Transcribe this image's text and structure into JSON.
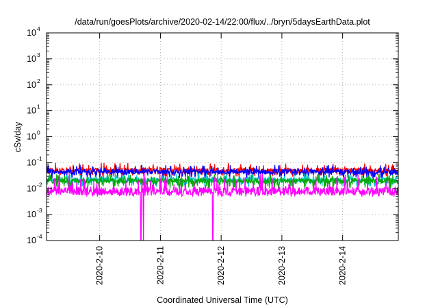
{
  "chart_data": {
    "type": "line",
    "title": "/data/run/goesPlots/archive/2020-02-14/22:00/flux/../bryn/5daysEarthData.plot",
    "xlabel": "Coordinated Universal Time (UTC)",
    "ylabel": "cSv/day",
    "y_scale": "log",
    "ylim": [
      0.0001,
      10000
    ],
    "y_ticks": [
      {
        "value": 0.0001,
        "base": "10",
        "exp": "-4"
      },
      {
        "value": 0.001,
        "base": "10",
        "exp": "-3"
      },
      {
        "value": 0.01,
        "base": "10",
        "exp": "-2"
      },
      {
        "value": 0.1,
        "base": "10",
        "exp": "-1"
      },
      {
        "value": 1,
        "base": "10",
        "exp": "0"
      },
      {
        "value": 10,
        "base": "10",
        "exp": "1"
      },
      {
        "value": 100,
        "base": "10",
        "exp": "2"
      },
      {
        "value": 1000,
        "base": "10",
        "exp": "3"
      },
      {
        "value": 10000,
        "base": "10",
        "exp": "4"
      }
    ],
    "xlim": [
      "2020-02-09 03:00",
      "2020-02-14 22:00"
    ],
    "x_ticks": [
      {
        "value": "2020-02-10 00:00",
        "label": "2020-2-10"
      },
      {
        "value": "2020-02-11 00:00",
        "label": "2020-2-11"
      },
      {
        "value": "2020-02-12 00:00",
        "label": "2020-2-12"
      },
      {
        "value": "2020-02-13 00:00",
        "label": "2020-2-13"
      },
      {
        "value": "2020-02-14 00:00",
        "label": "2020-2-14"
      }
    ],
    "grid": true,
    "legend": "none",
    "series": [
      {
        "color": "#ff0000",
        "typical": 0.052,
        "spread_low": 0.03,
        "spread_high": 0.095
      },
      {
        "color": "#0000ff",
        "typical": 0.045,
        "spread_low": 0.025,
        "spread_high": 0.08
      },
      {
        "color": "#00c8c8",
        "typical": 0.022,
        "spread_low": 0.012,
        "spread_high": 0.04
      },
      {
        "color": "#00aa00",
        "typical": 0.02,
        "spread_low": 0.01,
        "spread_high": 0.035
      },
      {
        "color": "#ff00ff",
        "typical": 0.008,
        "spread_low": 0.005,
        "spread_high": 0.04,
        "dropouts": [
          {
            "start": "2020-02-10 16:10",
            "end": "2020-02-10 16:25",
            "value": 0.0001
          },
          {
            "start": "2020-02-10 17:10",
            "end": "2020-02-10 17:25",
            "value": 0.0001
          },
          {
            "start": "2020-02-11 20:30",
            "end": "2020-02-11 20:50",
            "value": 0.0001
          }
        ]
      }
    ]
  }
}
